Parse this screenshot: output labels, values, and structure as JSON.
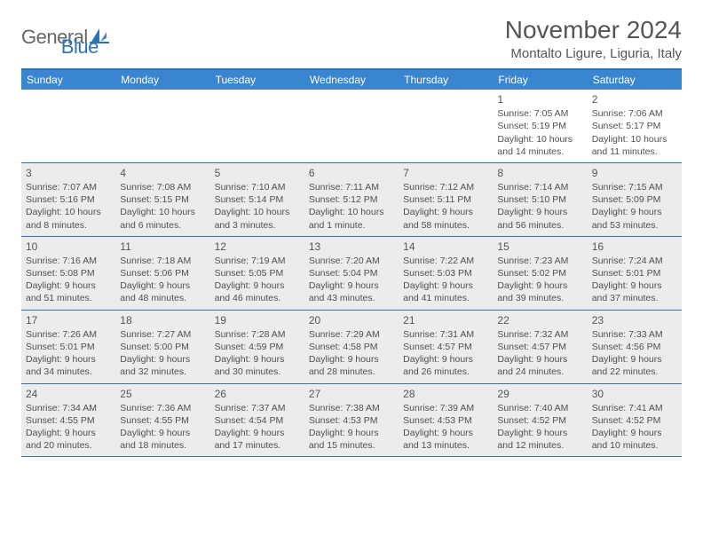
{
  "logo": {
    "text1": "General",
    "text2": "Blue"
  },
  "title": "November 2024",
  "location": "Montalto Ligure, Liguria, Italy",
  "colors": {
    "header_bar": "#3a85cf",
    "border": "#2e74b5",
    "shaded_bg": "#ececec",
    "text": "#505050",
    "page_bg": "#ffffff"
  },
  "weekdays": [
    "Sunday",
    "Monday",
    "Tuesday",
    "Wednesday",
    "Thursday",
    "Friday",
    "Saturday"
  ],
  "weeks": [
    [
      {
        "day": "",
        "sunrise": "",
        "sunset": "",
        "daylight": "",
        "shaded": false
      },
      {
        "day": "",
        "sunrise": "",
        "sunset": "",
        "daylight": "",
        "shaded": false
      },
      {
        "day": "",
        "sunrise": "",
        "sunset": "",
        "daylight": "",
        "shaded": false
      },
      {
        "day": "",
        "sunrise": "",
        "sunset": "",
        "daylight": "",
        "shaded": false
      },
      {
        "day": "",
        "sunrise": "",
        "sunset": "",
        "daylight": "",
        "shaded": false
      },
      {
        "day": "1",
        "sunrise": "Sunrise: 7:05 AM",
        "sunset": "Sunset: 5:19 PM",
        "daylight": "Daylight: 10 hours and 14 minutes.",
        "shaded": false
      },
      {
        "day": "2",
        "sunrise": "Sunrise: 7:06 AM",
        "sunset": "Sunset: 5:17 PM",
        "daylight": "Daylight: 10 hours and 11 minutes.",
        "shaded": false
      }
    ],
    [
      {
        "day": "3",
        "sunrise": "Sunrise: 7:07 AM",
        "sunset": "Sunset: 5:16 PM",
        "daylight": "Daylight: 10 hours and 8 minutes.",
        "shaded": true
      },
      {
        "day": "4",
        "sunrise": "Sunrise: 7:08 AM",
        "sunset": "Sunset: 5:15 PM",
        "daylight": "Daylight: 10 hours and 6 minutes.",
        "shaded": true
      },
      {
        "day": "5",
        "sunrise": "Sunrise: 7:10 AM",
        "sunset": "Sunset: 5:14 PM",
        "daylight": "Daylight: 10 hours and 3 minutes.",
        "shaded": true
      },
      {
        "day": "6",
        "sunrise": "Sunrise: 7:11 AM",
        "sunset": "Sunset: 5:12 PM",
        "daylight": "Daylight: 10 hours and 1 minute.",
        "shaded": true
      },
      {
        "day": "7",
        "sunrise": "Sunrise: 7:12 AM",
        "sunset": "Sunset: 5:11 PM",
        "daylight": "Daylight: 9 hours and 58 minutes.",
        "shaded": true
      },
      {
        "day": "8",
        "sunrise": "Sunrise: 7:14 AM",
        "sunset": "Sunset: 5:10 PM",
        "daylight": "Daylight: 9 hours and 56 minutes.",
        "shaded": true
      },
      {
        "day": "9",
        "sunrise": "Sunrise: 7:15 AM",
        "sunset": "Sunset: 5:09 PM",
        "daylight": "Daylight: 9 hours and 53 minutes.",
        "shaded": true
      }
    ],
    [
      {
        "day": "10",
        "sunrise": "Sunrise: 7:16 AM",
        "sunset": "Sunset: 5:08 PM",
        "daylight": "Daylight: 9 hours and 51 minutes.",
        "shaded": true
      },
      {
        "day": "11",
        "sunrise": "Sunrise: 7:18 AM",
        "sunset": "Sunset: 5:06 PM",
        "daylight": "Daylight: 9 hours and 48 minutes.",
        "shaded": true
      },
      {
        "day": "12",
        "sunrise": "Sunrise: 7:19 AM",
        "sunset": "Sunset: 5:05 PM",
        "daylight": "Daylight: 9 hours and 46 minutes.",
        "shaded": true
      },
      {
        "day": "13",
        "sunrise": "Sunrise: 7:20 AM",
        "sunset": "Sunset: 5:04 PM",
        "daylight": "Daylight: 9 hours and 43 minutes.",
        "shaded": true
      },
      {
        "day": "14",
        "sunrise": "Sunrise: 7:22 AM",
        "sunset": "Sunset: 5:03 PM",
        "daylight": "Daylight: 9 hours and 41 minutes.",
        "shaded": true
      },
      {
        "day": "15",
        "sunrise": "Sunrise: 7:23 AM",
        "sunset": "Sunset: 5:02 PM",
        "daylight": "Daylight: 9 hours and 39 minutes.",
        "shaded": true
      },
      {
        "day": "16",
        "sunrise": "Sunrise: 7:24 AM",
        "sunset": "Sunset: 5:01 PM",
        "daylight": "Daylight: 9 hours and 37 minutes.",
        "shaded": true
      }
    ],
    [
      {
        "day": "17",
        "sunrise": "Sunrise: 7:26 AM",
        "sunset": "Sunset: 5:01 PM",
        "daylight": "Daylight: 9 hours and 34 minutes.",
        "shaded": true
      },
      {
        "day": "18",
        "sunrise": "Sunrise: 7:27 AM",
        "sunset": "Sunset: 5:00 PM",
        "daylight": "Daylight: 9 hours and 32 minutes.",
        "shaded": true
      },
      {
        "day": "19",
        "sunrise": "Sunrise: 7:28 AM",
        "sunset": "Sunset: 4:59 PM",
        "daylight": "Daylight: 9 hours and 30 minutes.",
        "shaded": true
      },
      {
        "day": "20",
        "sunrise": "Sunrise: 7:29 AM",
        "sunset": "Sunset: 4:58 PM",
        "daylight": "Daylight: 9 hours and 28 minutes.",
        "shaded": true
      },
      {
        "day": "21",
        "sunrise": "Sunrise: 7:31 AM",
        "sunset": "Sunset: 4:57 PM",
        "daylight": "Daylight: 9 hours and 26 minutes.",
        "shaded": true
      },
      {
        "day": "22",
        "sunrise": "Sunrise: 7:32 AM",
        "sunset": "Sunset: 4:57 PM",
        "daylight": "Daylight: 9 hours and 24 minutes.",
        "shaded": true
      },
      {
        "day": "23",
        "sunrise": "Sunrise: 7:33 AM",
        "sunset": "Sunset: 4:56 PM",
        "daylight": "Daylight: 9 hours and 22 minutes.",
        "shaded": true
      }
    ],
    [
      {
        "day": "24",
        "sunrise": "Sunrise: 7:34 AM",
        "sunset": "Sunset: 4:55 PM",
        "daylight": "Daylight: 9 hours and 20 minutes.",
        "shaded": true
      },
      {
        "day": "25",
        "sunrise": "Sunrise: 7:36 AM",
        "sunset": "Sunset: 4:55 PM",
        "daylight": "Daylight: 9 hours and 18 minutes.",
        "shaded": true
      },
      {
        "day": "26",
        "sunrise": "Sunrise: 7:37 AM",
        "sunset": "Sunset: 4:54 PM",
        "daylight": "Daylight: 9 hours and 17 minutes.",
        "shaded": true
      },
      {
        "day": "27",
        "sunrise": "Sunrise: 7:38 AM",
        "sunset": "Sunset: 4:53 PM",
        "daylight": "Daylight: 9 hours and 15 minutes.",
        "shaded": true
      },
      {
        "day": "28",
        "sunrise": "Sunrise: 7:39 AM",
        "sunset": "Sunset: 4:53 PM",
        "daylight": "Daylight: 9 hours and 13 minutes.",
        "shaded": true
      },
      {
        "day": "29",
        "sunrise": "Sunrise: 7:40 AM",
        "sunset": "Sunset: 4:52 PM",
        "daylight": "Daylight: 9 hours and 12 minutes.",
        "shaded": true
      },
      {
        "day": "30",
        "sunrise": "Sunrise: 7:41 AM",
        "sunset": "Sunset: 4:52 PM",
        "daylight": "Daylight: 9 hours and 10 minutes.",
        "shaded": true
      }
    ]
  ]
}
